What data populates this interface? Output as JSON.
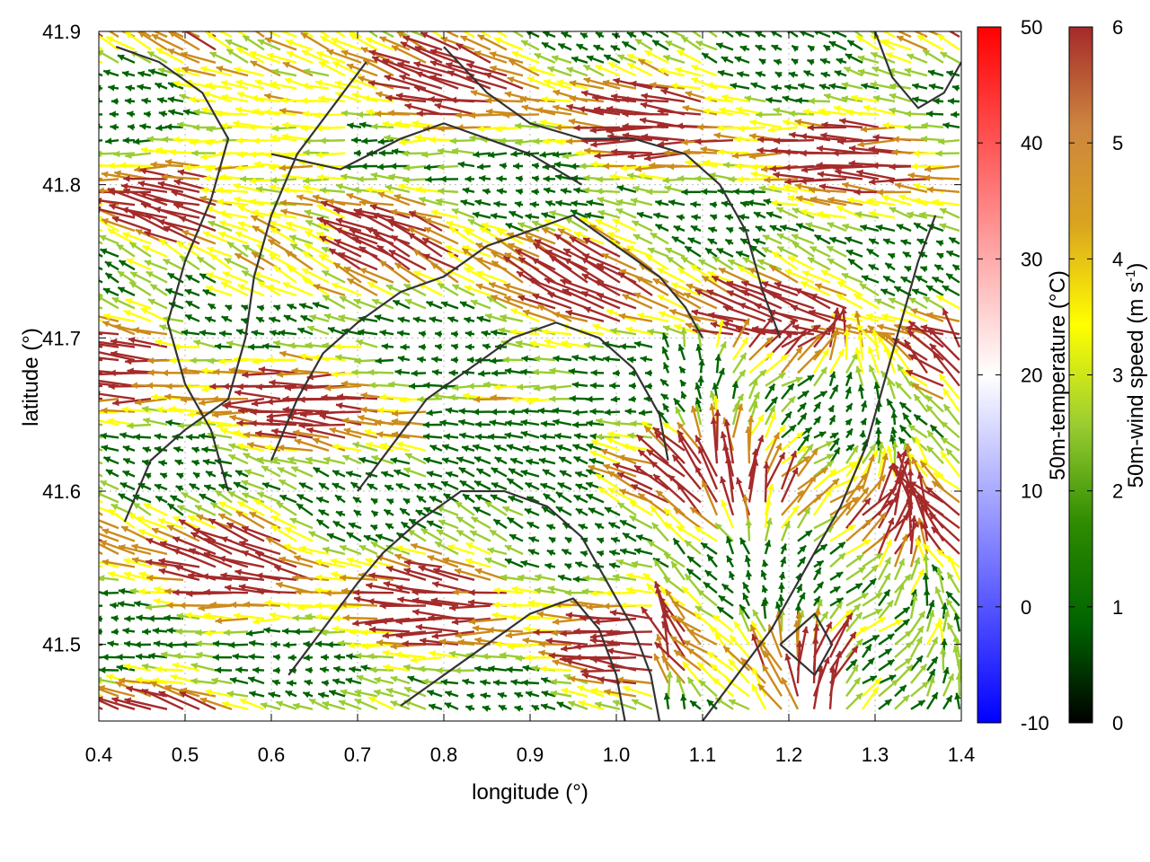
{
  "chart_data": {
    "type": "vector-field",
    "title": "",
    "xlabel": "longitude (°)",
    "ylabel": "latitude (°)",
    "xlim": [
      0.4,
      1.4
    ],
    "ylim": [
      41.45,
      41.9
    ],
    "xticks": [
      "0.4",
      "0.5",
      "0.6",
      "0.7",
      "0.8",
      "0.9",
      "1.0",
      "1.1",
      "1.2",
      "1.3",
      "1.4"
    ],
    "yticks": [
      "41.5",
      "41.6",
      "41.7",
      "41.8",
      "41.9"
    ],
    "grid": true,
    "colorbars": [
      {
        "label": "50m-temperature (°C)",
        "range": [
          -10,
          50
        ],
        "ticks": [
          "-10",
          "0",
          "10",
          "20",
          "30",
          "40",
          "50"
        ],
        "colors": [
          "#0000ff",
          "#ffffff",
          "#ff0000"
        ]
      },
      {
        "label": "50m-wind speed (m s",
        "label_sup": "-1",
        "label_end": ")",
        "range": [
          0,
          6
        ],
        "ticks": [
          "0",
          "1",
          "2",
          "3",
          "4",
          "5",
          "6"
        ],
        "colors": [
          "#000000",
          "#006400",
          "#2e8b00",
          "#9acd32",
          "#ffff00",
          "#daa520",
          "#cd853f",
          "#a52a2a"
        ]
      }
    ],
    "contour_color": "#333333",
    "wind_colors": {
      "low": "#006400",
      "mid_low": "#9acd32",
      "mid": "#ffff00",
      "mid_high": "#cd8b1a",
      "high": "#a52a2a"
    },
    "contours": [
      [
        [
          0.42,
          41.89
        ],
        [
          0.47,
          41.88
        ],
        [
          0.52,
          41.86
        ],
        [
          0.55,
          41.83
        ],
        [
          0.53,
          41.79
        ],
        [
          0.5,
          41.75
        ],
        [
          0.48,
          41.71
        ],
        [
          0.5,
          41.67
        ],
        [
          0.53,
          41.64
        ],
        [
          0.55,
          41.6
        ]
      ],
      [
        [
          0.43,
          41.58
        ],
        [
          0.46,
          41.62
        ],
        [
          0.5,
          41.64
        ],
        [
          0.55,
          41.66
        ],
        [
          0.57,
          41.7
        ],
        [
          0.58,
          41.74
        ],
        [
          0.6,
          41.78
        ],
        [
          0.63,
          41.82
        ],
        [
          0.67,
          41.85
        ],
        [
          0.71,
          41.88
        ]
      ],
      [
        [
          0.6,
          41.82
        ],
        [
          0.68,
          41.81
        ],
        [
          0.75,
          41.83
        ],
        [
          0.8,
          41.84
        ],
        [
          0.85,
          41.83
        ],
        [
          0.9,
          41.82
        ],
        [
          0.96,
          41.8
        ]
      ],
      [
        [
          0.8,
          41.89
        ],
        [
          0.85,
          41.86
        ],
        [
          0.9,
          41.84
        ],
        [
          0.96,
          41.83
        ],
        [
          1.02,
          41.83
        ],
        [
          1.08,
          41.82
        ],
        [
          1.12,
          41.8
        ],
        [
          1.15,
          41.77
        ],
        [
          1.17,
          41.73
        ],
        [
          1.19,
          41.7
        ]
      ],
      [
        [
          0.6,
          41.62
        ],
        [
          0.63,
          41.66
        ],
        [
          0.66,
          41.69
        ],
        [
          0.7,
          41.71
        ],
        [
          0.75,
          41.73
        ],
        [
          0.8,
          41.74
        ],
        [
          0.85,
          41.76
        ],
        [
          0.9,
          41.77
        ],
        [
          0.95,
          41.78
        ],
        [
          1.0,
          41.76
        ],
        [
          1.05,
          41.74
        ],
        [
          1.08,
          41.72
        ],
        [
          1.1,
          41.7
        ]
      ],
      [
        [
          0.7,
          41.6
        ],
        [
          0.74,
          41.63
        ],
        [
          0.78,
          41.66
        ],
        [
          0.83,
          41.68
        ],
        [
          0.88,
          41.7
        ],
        [
          0.93,
          41.71
        ],
        [
          0.98,
          41.7
        ],
        [
          1.02,
          41.68
        ],
        [
          1.05,
          41.65
        ],
        [
          1.06,
          41.62
        ]
      ],
      [
        [
          0.62,
          41.48
        ],
        [
          0.66,
          41.51
        ],
        [
          0.7,
          41.54
        ],
        [
          0.73,
          41.56
        ],
        [
          0.77,
          41.58
        ],
        [
          0.82,
          41.6
        ],
        [
          0.87,
          41.6
        ],
        [
          0.92,
          41.59
        ],
        [
          0.96,
          41.57
        ],
        [
          0.99,
          41.54
        ],
        [
          1.02,
          41.51
        ],
        [
          1.04,
          41.48
        ],
        [
          1.05,
          41.45
        ]
      ],
      [
        [
          0.75,
          41.46
        ],
        [
          0.8,
          41.48
        ],
        [
          0.85,
          41.5
        ],
        [
          0.9,
          41.52
        ],
        [
          0.95,
          41.53
        ],
        [
          0.98,
          41.51
        ],
        [
          1.0,
          41.48
        ],
        [
          1.01,
          41.45
        ]
      ],
      [
        [
          1.1,
          41.45
        ],
        [
          1.14,
          41.48
        ],
        [
          1.18,
          41.51
        ],
        [
          1.22,
          41.55
        ],
        [
          1.26,
          41.59
        ],
        [
          1.29,
          41.63
        ],
        [
          1.31,
          41.67
        ],
        [
          1.33,
          41.71
        ],
        [
          1.35,
          41.75
        ],
        [
          1.37,
          41.78
        ]
      ],
      [
        [
          1.19,
          41.5
        ],
        [
          1.23,
          41.52
        ],
        [
          1.25,
          41.5
        ],
        [
          1.23,
          41.48
        ],
        [
          1.19,
          41.5
        ]
      ],
      [
        [
          1.3,
          41.9
        ],
        [
          1.32,
          41.87
        ],
        [
          1.35,
          41.85
        ],
        [
          1.38,
          41.86
        ],
        [
          1.4,
          41.88
        ]
      ]
    ]
  }
}
